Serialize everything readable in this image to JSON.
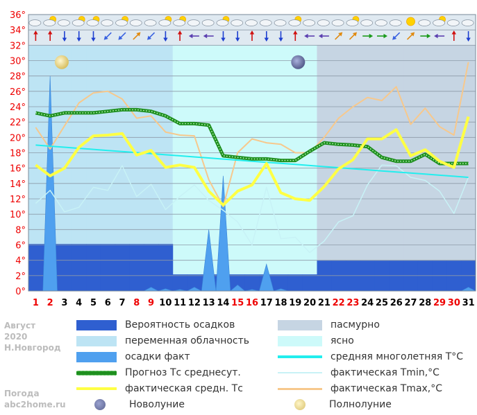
{
  "info": {
    "month": "Август",
    "year": "2020",
    "city": "Н.Новгород"
  },
  "site": {
    "line1": "Погода",
    "line2": "abc2home.ru"
  },
  "legend": {
    "precip_probability": "Вероятность осадков",
    "overcast": "пасмурно",
    "partly_cloudy": "переменная облачность",
    "clear": "ясно",
    "precip_actual": "осадки факт",
    "avg_multiyear": "средняя многолетняя T°C",
    "forecast_avg": "Прогноз Тс среднесут.",
    "actual_tmin": "фактическая Tmin,°C",
    "actual_avg": "фактическая средн. Тс",
    "actual_tmax": "фактическая Tmax,°C",
    "new_moon": "Новолуние",
    "full_moon": "Полнолуние"
  },
  "colors": {
    "precip_probability": "#2f5fd0",
    "overcast": "#c6d5e3",
    "partly_cloudy": "#bde4f4",
    "clear": "#cdfafa",
    "precip_actual": "#4fa0ef",
    "avg_multiyear": "#22eeee",
    "forecast_avg": "#1f8f1f",
    "actual_tmin": "#c8f2f6",
    "actual_avg": "#ffff44",
    "actual_tmax": "#f7c88c",
    "new_moon": "#7d86b8",
    "full_moon": "#f4e6a0",
    "weekend": "#ee0000"
  },
  "chart_data": {
    "type": "line",
    "days": [
      "1",
      "2",
      "3",
      "4",
      "5",
      "6",
      "7",
      "8",
      "9",
      "10",
      "11",
      "12",
      "13",
      "14",
      "15",
      "16",
      "17",
      "18",
      "19",
      "20",
      "21",
      "22",
      "23",
      "24",
      "25",
      "26",
      "27",
      "28",
      "29",
      "30",
      "31"
    ],
    "weekend_days": [
      "1",
      "2",
      "8",
      "9",
      "15",
      "16",
      "22",
      "23",
      "29",
      "30"
    ],
    "y_ticks": [
      "0°",
      "2°",
      "4°",
      "6°",
      "8°",
      "10°",
      "12°",
      "14°",
      "16°",
      "18°",
      "20°",
      "22°",
      "24°",
      "26°",
      "28°",
      "30°",
      "32°",
      "34°",
      "36°"
    ],
    "ylim": [
      0,
      36
    ],
    "grid": true,
    "series": [
      {
        "key": "actual_tmax",
        "values": [
          21.3,
          18.5,
          21.5,
          24.5,
          25.8,
          26.0,
          25.0,
          22.5,
          22.8,
          20.7,
          20.3,
          20.2,
          14.5,
          11.0,
          18.0,
          19.8,
          19.3,
          19.1,
          18.0,
          18.0,
          20.0,
          22.5,
          24.0,
          25.2,
          24.8,
          26.6,
          21.7,
          23.8,
          21.4,
          20.3,
          29.8
        ]
      },
      {
        "key": "actual_tmin",
        "values": [
          11.4,
          13.1,
          10.3,
          10.9,
          13.5,
          13.1,
          16.3,
          12.3,
          13.9,
          10.6,
          12.3,
          13.8,
          11.8,
          10.5,
          9.0,
          6.0,
          13.5,
          6.8,
          7.0,
          5.0,
          6.5,
          9.0,
          9.8,
          13.8,
          16.4,
          16.3,
          14.8,
          14.4,
          13.0,
          10.1,
          14.8
        ]
      },
      {
        "key": "avg_multiyear",
        "values": [
          19.0,
          18.86,
          18.72,
          18.58,
          18.44,
          18.3,
          18.16,
          18.02,
          17.88,
          17.74,
          17.6,
          17.46,
          17.32,
          17.18,
          17.04,
          16.9,
          16.76,
          16.62,
          16.48,
          16.34,
          16.2,
          16.06,
          15.92,
          15.78,
          15.64,
          15.5,
          15.36,
          15.22,
          15.08,
          14.94,
          14.8
        ]
      },
      {
        "key": "forecast_avg",
        "values": [
          23.2,
          22.8,
          23.2,
          23.2,
          23.2,
          23.4,
          23.6,
          23.6,
          23.4,
          22.8,
          21.8,
          21.8,
          21.6,
          17.6,
          17.4,
          17.2,
          17.2,
          17.0,
          17.0,
          18.2,
          19.3,
          19.1,
          19.0,
          18.8,
          17.4,
          16.9,
          16.9,
          17.8,
          16.6,
          16.6,
          16.6
        ]
      },
      {
        "key": "actual_avg",
        "values": [
          16.4,
          15.0,
          16.0,
          18.7,
          20.2,
          20.3,
          20.5,
          17.7,
          18.3,
          16.1,
          16.4,
          16.1,
          13.0,
          11.2,
          13.0,
          13.8,
          16.6,
          12.8,
          12.0,
          11.8,
          13.6,
          15.9,
          17.1,
          19.8,
          19.8,
          21.0,
          17.6,
          18.4,
          16.9,
          16.1,
          22.7
        ]
      }
    ],
    "precip_actual": [
      0,
      28,
      0,
      0,
      0,
      0,
      0,
      0,
      0.5,
      0.3,
      0.2,
      0.5,
      8,
      15,
      0.8,
      0.2,
      3.5,
      0.3,
      0,
      0,
      0,
      0,
      0,
      0,
      0,
      0,
      0,
      0,
      0,
      0,
      0.5
    ],
    "precip_probability_pct": [
      17,
      17,
      17,
      17,
      17,
      17,
      17,
      17,
      17,
      17,
      6,
      6,
      6,
      6,
      6,
      6,
      6,
      6,
      6,
      6,
      11,
      11,
      11,
      11,
      11,
      11,
      11,
      11,
      11,
      11,
      11
    ],
    "cloudiness": [
      "partly_cloudy",
      "partly_cloudy",
      "partly_cloudy",
      "partly_cloudy",
      "partly_cloudy",
      "partly_cloudy",
      "partly_cloudy",
      "partly_cloudy",
      "partly_cloudy",
      "partly_cloudy",
      "clear",
      "clear",
      "clear",
      "clear",
      "clear",
      "clear",
      "clear",
      "clear",
      "clear",
      "clear",
      "overcast",
      "overcast",
      "overcast",
      "overcast",
      "overcast",
      "overcast",
      "overcast",
      "overcast",
      "overcast",
      "overcast",
      "overcast"
    ],
    "full_moon_day": 3,
    "new_moon_day": 19,
    "weather_icons": [
      "cloudy",
      "partly-sunny",
      "cloudy",
      "partly-sunny",
      "partly-sunny",
      "cloudy",
      "partly-sunny",
      "cloudy",
      "cloudy",
      "partly-sunny",
      "partly-sunny",
      "cloudy",
      "cloudy",
      "partly-sunny",
      "cloudy",
      "cloudy",
      "cloudy",
      "cloudy",
      "partly-sunny",
      "cloudy",
      "cloudy",
      "cloudy",
      "partly-sunny",
      "cloudy",
      "cloudy",
      "cloudy",
      "sunny",
      "cloudy",
      "partly-sunny",
      "cloudy",
      "cloudy"
    ],
    "wind_arrows": [
      "N",
      "N",
      "S",
      "S",
      "S",
      "SW",
      "SW",
      "NE",
      "SW",
      "S",
      "N",
      "W",
      "W",
      "S",
      "S",
      "N",
      "S",
      "S",
      "N",
      "W",
      "W",
      "NE",
      "NE",
      "E",
      "E",
      "SW",
      "NE",
      "E",
      "W",
      "N",
      "S"
    ]
  }
}
